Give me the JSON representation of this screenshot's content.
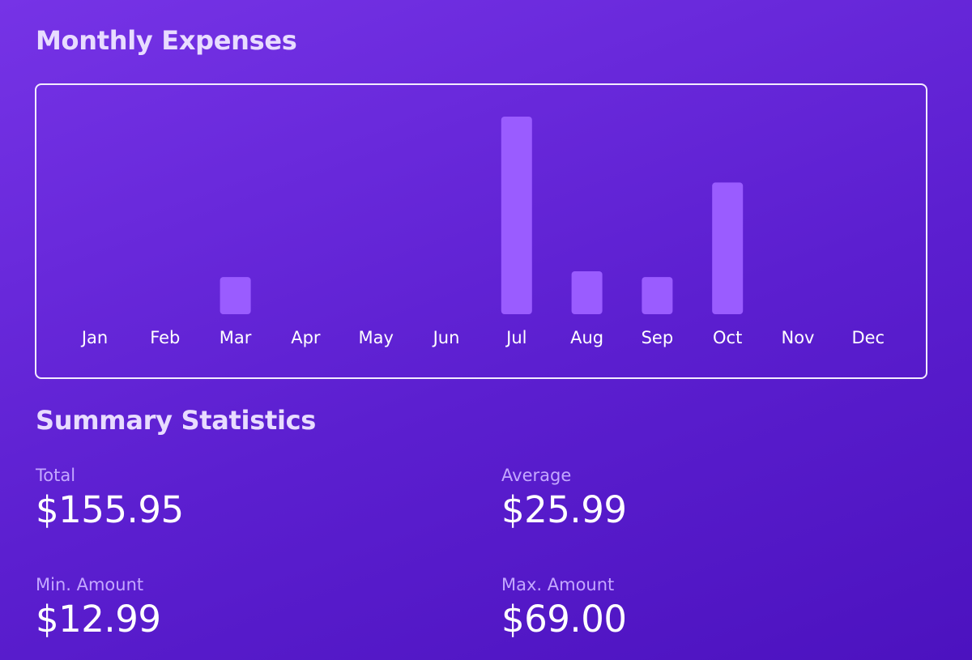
{
  "page": {
    "chart_heading": "Monthly Expenses",
    "summary_heading": "Summary Statistics"
  },
  "colors": {
    "bar": "#9a5cff",
    "heading": "#e8dcff",
    "stat_label": "#c4a8ff",
    "panel_border": "#f3ecff"
  },
  "chart_data": {
    "type": "bar",
    "categories": [
      "Jan",
      "Feb",
      "Mar",
      "Apr",
      "May",
      "Jun",
      "Jul",
      "Aug",
      "Sep",
      "Oct",
      "Nov",
      "Dec"
    ],
    "values": [
      0,
      0,
      12.99,
      0,
      0,
      0,
      69.0,
      15.0,
      12.99,
      45.99,
      0,
      0
    ],
    "ylim": [
      0,
      69.0
    ],
    "grid": false,
    "legend": "none"
  },
  "summary": {
    "total": {
      "label": "Total",
      "value": "$155.95"
    },
    "average": {
      "label": "Average",
      "value": "$25.99"
    },
    "min": {
      "label": "Min. Amount",
      "value": "$12.99"
    },
    "max": {
      "label": "Max. Amount",
      "value": "$69.00"
    }
  }
}
